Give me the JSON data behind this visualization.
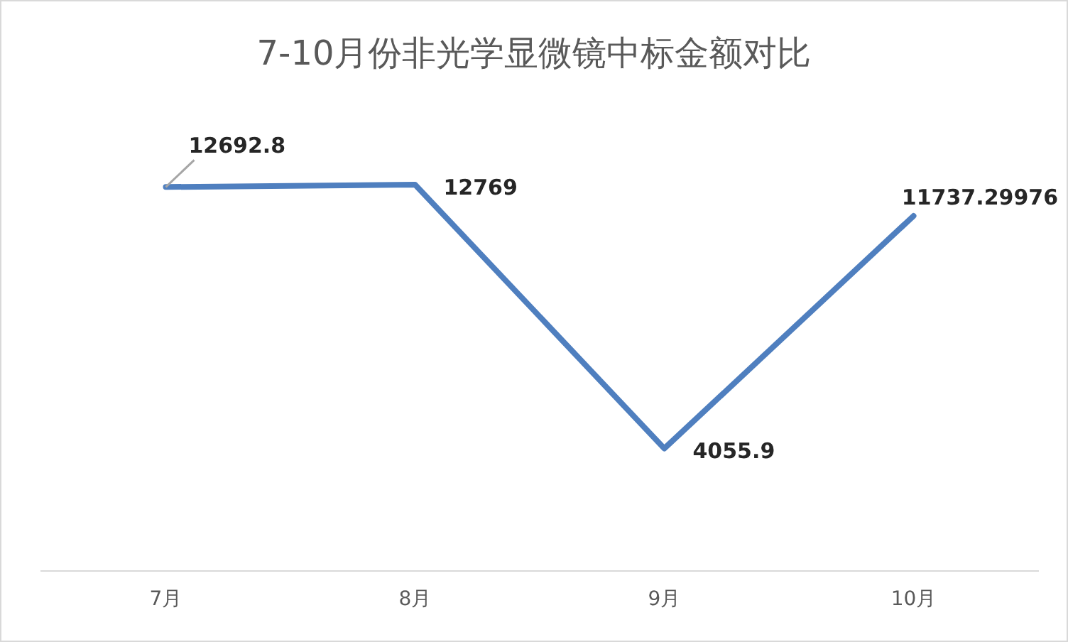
{
  "chart_data": {
    "type": "line",
    "title": "7-10月份非光学显微镜中标金额对比",
    "categories": [
      "7月",
      "8月",
      "9月",
      "10月"
    ],
    "series": [
      {
        "color": "#4f7fbf",
        "values": [
          12692.8,
          12769,
          4055.9,
          11737.29976
        ]
      }
    ],
    "grid": false,
    "legend": false,
    "marker": "none",
    "line_style": "solid",
    "data_labels": true,
    "tick_labels": "x"
  }
}
